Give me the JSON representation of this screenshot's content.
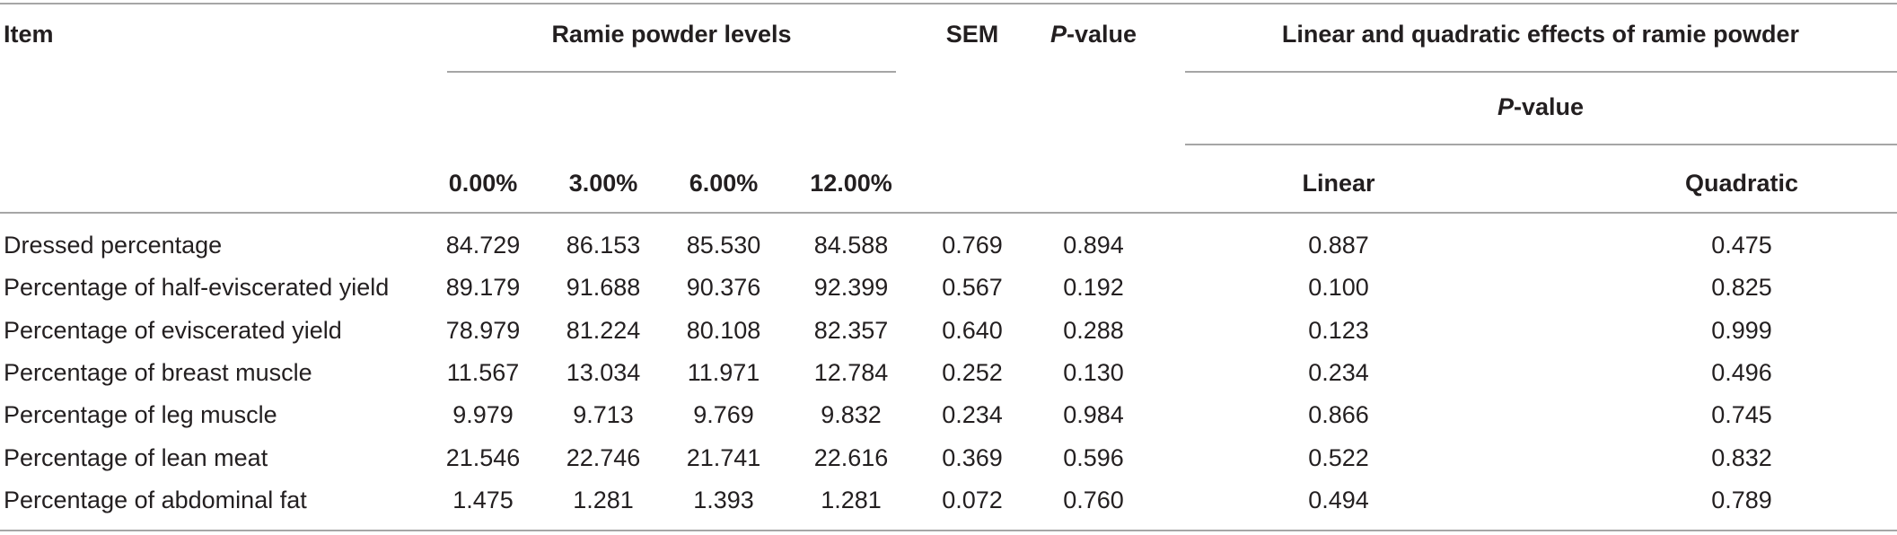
{
  "table": {
    "header": {
      "item": "Item",
      "levels_group": "Ramie powder levels",
      "sem": "SEM",
      "pvalue_prefix": "P",
      "pvalue_suffix": "-value",
      "effects_group": "Linear and quadratic effects of ramie powder",
      "effects_sub_prefix": "P",
      "effects_sub_suffix": "-value",
      "levels": [
        "0.00%",
        "3.00%",
        "6.00%",
        "12.00%"
      ],
      "linear": "Linear",
      "quadratic": "Quadratic"
    },
    "rows": [
      {
        "item": "Dressed percentage",
        "l0": "84.729",
        "l3": "86.153",
        "l6": "85.530",
        "l12": "84.588",
        "sem": "0.769",
        "p": "0.894",
        "linear": "0.887",
        "quadratic": "0.475"
      },
      {
        "item": "Percentage of half-eviscerated yield",
        "l0": "89.179",
        "l3": "91.688",
        "l6": "90.376",
        "l12": "92.399",
        "sem": "0.567",
        "p": "0.192",
        "linear": "0.100",
        "quadratic": "0.825"
      },
      {
        "item": "Percentage of eviscerated yield",
        "l0": "78.979",
        "l3": "81.224",
        "l6": "80.108",
        "l12": "82.357",
        "sem": "0.640",
        "p": "0.288",
        "linear": "0.123",
        "quadratic": "0.999"
      },
      {
        "item": "Percentage of breast muscle",
        "l0": "11.567",
        "l3": "13.034",
        "l6": "11.971",
        "l12": "12.784",
        "sem": "0.252",
        "p": "0.130",
        "linear": "0.234",
        "quadratic": "0.496"
      },
      {
        "item": "Percentage of leg muscle",
        "l0": "9.979",
        "l3": "9.713",
        "l6": "9.769",
        "l12": "9.832",
        "sem": "0.234",
        "p": "0.984",
        "linear": "0.866",
        "quadratic": "0.745"
      },
      {
        "item": "Percentage of lean meat",
        "l0": "21.546",
        "l3": "22.746",
        "l6": "21.741",
        "l12": "22.616",
        "sem": "0.369",
        "p": "0.596",
        "linear": "0.522",
        "quadratic": "0.832"
      },
      {
        "item": "Percentage of abdominal fat",
        "l0": "1.475",
        "l3": "1.281",
        "l6": "1.393",
        "l12": "1.281",
        "sem": "0.072",
        "p": "0.760",
        "linear": "0.494",
        "quadratic": "0.789"
      }
    ]
  }
}
